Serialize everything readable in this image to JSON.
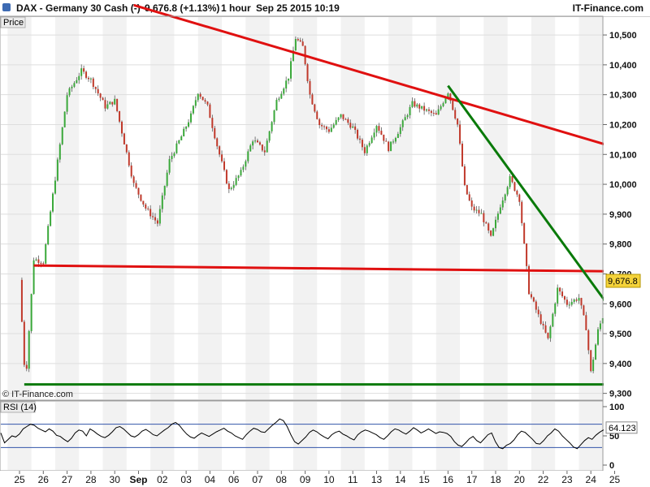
{
  "header": {
    "instrument": "DAX - Germany 30 Cash (-)",
    "last_price": "9,676.8 (+1.13%)",
    "timeframe": "1 hour",
    "datetime": "Sep 25 2015 10:19",
    "brand": "IT-Finance.com"
  },
  "chart_data": [
    {
      "type": "candlestick",
      "panel_label": "Price",
      "watermark": "© IT-Finance.com",
      "y_ticks": [
        9300,
        9400,
        9500,
        9600,
        9700,
        9800,
        9900,
        10000,
        10100,
        10200,
        10300,
        10400,
        10500
      ],
      "y_tick_labels": [
        "9,300",
        "9,400",
        "9,500",
        "9,600",
        "9,700",
        "9,800",
        "9,900",
        "10,000",
        "10,100",
        "10,200",
        "10,300",
        "10,400",
        "10,500"
      ],
      "ylim": [
        9280,
        10560
      ],
      "x_labels": [
        "25",
        "26",
        "27",
        "28",
        "30",
        "Sep",
        "02",
        "03",
        "04",
        "06",
        "07",
        "08",
        "09",
        "10",
        "11",
        "13",
        "14",
        "15",
        "16",
        "17",
        "18",
        "20",
        "22",
        "23",
        "24",
        "25"
      ],
      "last_value": "9,676.8",
      "daily_path": [
        [
          0,
          9680
        ],
        [
          0.25,
          9330
        ],
        [
          0.6,
          9750
        ],
        [
          1.0,
          9740
        ],
        [
          1.5,
          10020
        ],
        [
          2.0,
          10300
        ],
        [
          2.6,
          10380
        ],
        [
          3.0,
          10350
        ],
        [
          3.6,
          10260
        ],
        [
          4.0,
          10280
        ],
        [
          4.4,
          10140
        ],
        [
          4.8,
          10000
        ],
        [
          5.3,
          9920
        ],
        [
          5.8,
          9870
        ],
        [
          6.3,
          10080
        ],
        [
          6.8,
          10160
        ],
        [
          7.2,
          10230
        ],
        [
          7.5,
          10310
        ],
        [
          7.9,
          10260
        ],
        [
          8.3,
          10130
        ],
        [
          8.8,
          9980
        ],
        [
          9.3,
          10040
        ],
        [
          9.8,
          10150
        ],
        [
          10.3,
          10110
        ],
        [
          10.8,
          10280
        ],
        [
          11.3,
          10360
        ],
        [
          11.6,
          10490
        ],
        [
          11.9,
          10460
        ],
        [
          12.2,
          10300
        ],
        [
          12.6,
          10200
        ],
        [
          13.0,
          10180
        ],
        [
          13.5,
          10230
        ],
        [
          14.0,
          10190
        ],
        [
          14.5,
          10110
        ],
        [
          15.0,
          10200
        ],
        [
          15.5,
          10120
        ],
        [
          16.0,
          10190
        ],
        [
          16.5,
          10270
        ],
        [
          17.0,
          10250
        ],
        [
          17.5,
          10230
        ],
        [
          18.0,
          10310
        ],
        [
          18.4,
          10200
        ],
        [
          18.7,
          9990
        ],
        [
          19.0,
          9920
        ],
        [
          19.4,
          9900
        ],
        [
          19.8,
          9820
        ],
        [
          20.2,
          9930
        ],
        [
          20.6,
          10020
        ],
        [
          21.0,
          9950
        ],
        [
          21.4,
          9640
        ],
        [
          21.8,
          9560
        ],
        [
          22.2,
          9480
        ],
        [
          22.6,
          9650
        ],
        [
          23.0,
          9600
        ],
        [
          23.5,
          9620
        ],
        [
          23.8,
          9520
        ],
        [
          24.0,
          9370
        ],
        [
          24.3,
          9510
        ],
        [
          24.6,
          9580
        ],
        [
          25.0,
          9620
        ],
        [
          25.3,
          9677
        ]
      ],
      "trendlines": [
        {
          "name": "resistance",
          "color": "#e01010",
          "from": [
            4.8,
            10600
          ],
          "to": [
            25.6,
            10110
          ]
        },
        {
          "name": "support",
          "color": "#e01010",
          "from": [
            0.6,
            9728
          ],
          "to": [
            25.6,
            9708
          ]
        },
        {
          "name": "downtrend",
          "color": "#0a7a0a",
          "from": [
            18.0,
            10330
          ],
          "to": [
            25.6,
            9500
          ]
        },
        {
          "name": "floor",
          "color": "#0a7a0a",
          "from": [
            0.2,
            9330
          ],
          "to": [
            25.6,
            9330
          ]
        }
      ]
    },
    {
      "type": "line",
      "panel_label": "RSI (14)",
      "y_tick_labels": [
        "100",
        "50",
        "0"
      ],
      "ylim": [
        0,
        100
      ],
      "levels": [
        70,
        30
      ],
      "last_value": "64.123",
      "values": [
        55,
        38,
        44,
        50,
        48,
        53,
        62,
        66,
        70,
        68,
        63,
        60,
        57,
        62,
        58,
        51,
        49,
        44,
        40,
        46,
        55,
        60,
        58,
        50,
        62,
        58,
        53,
        49,
        47,
        51,
        57,
        64,
        66,
        62,
        56,
        50,
        48,
        52,
        58,
        61,
        57,
        52,
        50,
        55,
        60,
        64,
        70,
        73,
        68,
        60,
        53,
        48,
        46,
        51,
        55,
        52,
        49,
        53,
        57,
        60,
        63,
        58,
        55,
        50,
        47,
        44,
        52,
        58,
        63,
        61,
        57,
        56,
        62,
        68,
        73,
        79,
        76,
        66,
        52,
        40,
        36,
        42,
        48,
        56,
        60,
        57,
        52,
        48,
        45,
        52,
        56,
        58,
        53,
        50,
        46,
        43,
        52,
        57,
        60,
        58,
        55,
        52,
        47,
        44,
        50,
        57,
        62,
        60,
        56,
        53,
        58,
        64,
        60,
        55,
        58,
        62,
        58,
        54,
        57,
        56,
        54,
        49,
        40,
        34,
        32,
        38,
        45,
        49,
        42,
        38,
        45,
        52,
        55,
        40,
        30,
        28,
        34,
        37,
        43,
        52,
        58,
        56,
        50,
        44,
        37,
        36,
        42,
        50,
        55,
        62,
        58,
        50,
        44,
        38,
        31,
        28,
        35,
        42,
        47,
        44,
        51,
        56,
        60,
        58,
        55,
        52,
        58,
        64
      ]
    }
  ]
}
